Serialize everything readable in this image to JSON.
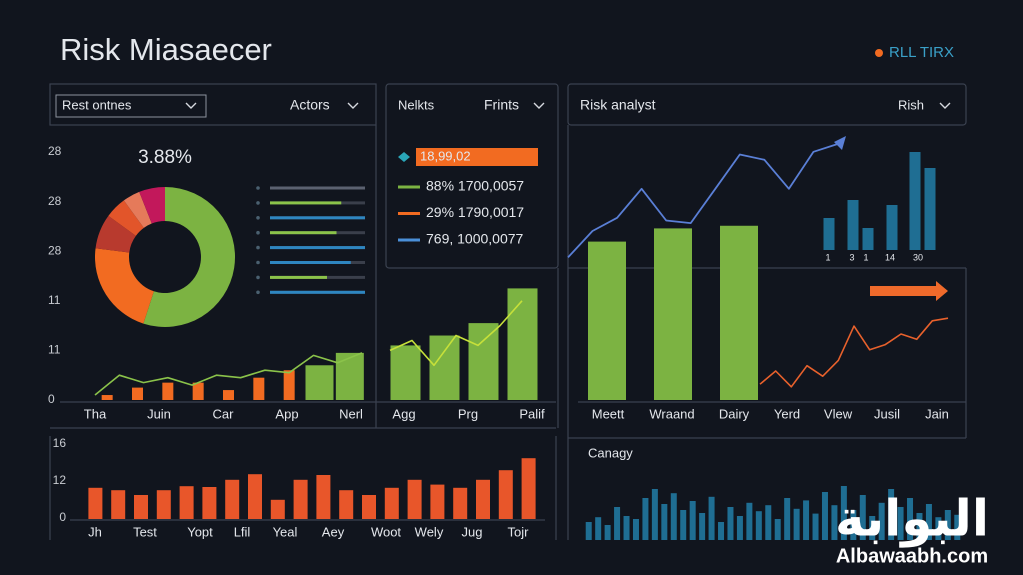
{
  "header": {
    "title": "Risk Miasaecer",
    "badge": "RLL TIRX"
  },
  "overview": {
    "filter": "Rest ontnes",
    "menu": "Actors",
    "axis_labels": [
      "28",
      "28",
      "28",
      "11",
      "11",
      "0"
    ],
    "share": {
      "label": "3.88%",
      "values": [
        55,
        22,
        8,
        5,
        4,
        6
      ],
      "colors": [
        "#7cb342",
        "#f26b21",
        "#b83a2e",
        "#e2552a",
        "#e57a5a",
        "#c2185b"
      ]
    },
    "meters": [
      {
        "value": 100,
        "color": "#5b6170"
      },
      {
        "value": 75,
        "color": "#8bc34a"
      },
      {
        "value": 100,
        "color": "#2e86c1"
      },
      {
        "value": 70,
        "color": "#8bc34a"
      },
      {
        "value": 100,
        "color": "#2e86c1"
      },
      {
        "value": 85,
        "color": "#2e86c1"
      },
      {
        "value": 60,
        "color": "#8bc34a"
      },
      {
        "value": 100,
        "color": "#2e86c1"
      }
    ],
    "categories": [
      "Tha",
      "Juin",
      "Car",
      "App",
      "Nerl"
    ],
    "bars": [
      2,
      5,
      7,
      7,
      4,
      9,
      12,
      14,
      19
    ],
    "bar_colors": [
      "#f26b21",
      "#f26b21",
      "#f26b21",
      "#f26b21",
      "#f26b21",
      "#f26b21",
      "#f26b21",
      "#7cb342",
      "#7cb342"
    ],
    "line": [
      2,
      10,
      7,
      9,
      6,
      10,
      9,
      12,
      11,
      18,
      15,
      19
    ],
    "line_color": "#8bc34a"
  },
  "markets": {
    "title": "Nelkts",
    "menu": "Frints",
    "highlight": "18,99,02",
    "entries": [
      {
        "label": "88% 1700,0057",
        "color": "#7cb342"
      },
      {
        "label": "29% 1790,0017",
        "color": "#f26b21"
      },
      {
        "label": "769, 1000,0077",
        "color": "#4a8fd8"
      }
    ],
    "categories": [
      "Agg",
      "Prg",
      "Palif"
    ],
    "bars": [
      22,
      26,
      31,
      45
    ],
    "bar_color": "#7cb342",
    "line": [
      20,
      24,
      14,
      26,
      22,
      30,
      40
    ],
    "line_color": "#c6e03a"
  },
  "risk": {
    "title": "Risk analyst",
    "menu": "Rish",
    "categories": [
      "Meett",
      "Wraand",
      "Dairy",
      "Yerd",
      "Vlew",
      "Jusil",
      "Jain"
    ],
    "bars": [
      60,
      65,
      66
    ],
    "bar_color": "#7cb342",
    "trend": [
      54,
      64,
      69,
      80,
      68,
      67,
      80,
      93,
      91,
      80,
      94,
      97
    ],
    "trend_color": "#5a7fd6",
    "trend2": [
      6,
      11,
      5,
      13,
      9,
      15,
      28,
      19,
      21,
      25,
      23,
      30,
      31
    ],
    "trend2_color": "#e8612c",
    "mini_bars": [
      32,
      50,
      22,
      45,
      98,
      82
    ],
    "mini_color": "#1f6e93",
    "mini_labels": [
      "1",
      "3",
      "1",
      "14",
      "30"
    ]
  },
  "timeline": {
    "axis_labels": [
      "16",
      "12",
      "0"
    ],
    "categories": [
      "Jh",
      "Test",
      "Yopt",
      "Lfil",
      "Yeal",
      "Aey",
      "Woot",
      "Wely",
      "Jug",
      "Tojr"
    ],
    "bars": [
      39,
      36,
      30,
      36,
      41,
      40,
      49,
      56,
      24,
      49,
      55,
      36,
      30,
      39,
      49,
      43,
      39,
      49,
      61,
      76
    ],
    "bar_color": "#e8562a"
  },
  "category": {
    "title": "Canagy",
    "bars": [
      30,
      38,
      25,
      55,
      40,
      35,
      70,
      85,
      60,
      78,
      50,
      65,
      45,
      72,
      30,
      55,
      40,
      62,
      48,
      58,
      35,
      70,
      52,
      66,
      44,
      80,
      58,
      90,
      50,
      75,
      40,
      62,
      85,
      55,
      70,
      45,
      60,
      38,
      50,
      42
    ],
    "bar_color": "#1f6e93"
  },
  "watermark": {
    "arabic": "البوابة",
    "site": "Albawaabh.com"
  }
}
